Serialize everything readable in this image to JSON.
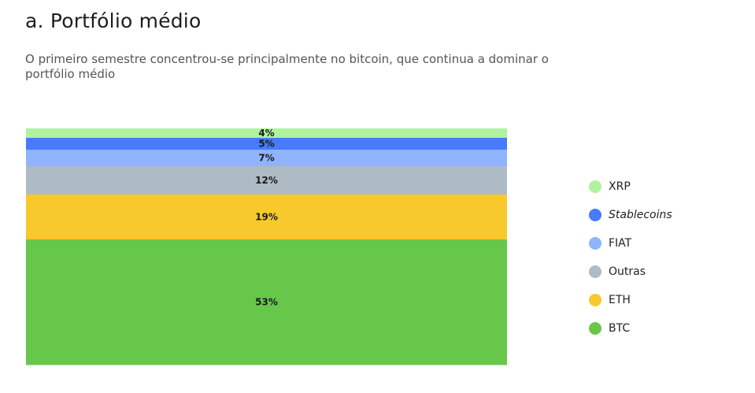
{
  "title": "a. Portfólio médio",
  "subtitle": "O primeiro semestre concentrou-se principalmente no bitcoin, que continua a dominar o portfólio médio",
  "chart_data": {
    "type": "bar",
    "stacked": true,
    "orientation": "vertical",
    "value_unit": "%",
    "ylim": [
      0,
      100
    ],
    "grid": false,
    "legend_position": "right",
    "series": [
      {
        "name": "XRP",
        "value": 4,
        "label": "4%",
        "color": "#b0f2a0",
        "italic": false
      },
      {
        "name": "Stablecoins",
        "value": 5,
        "label": "5%",
        "color": "#457bfc",
        "italic": true
      },
      {
        "name": "FIAT",
        "value": 7,
        "label": "7%",
        "color": "#90b3fd",
        "italic": false
      },
      {
        "name": "Outras",
        "value": 12,
        "label": "12%",
        "color": "#aebac4",
        "italic": false
      },
      {
        "name": "ETH",
        "value": 19,
        "label": "19%",
        "color": "#f7c92d",
        "italic": false
      },
      {
        "name": "BTC",
        "value": 53,
        "label": "53%",
        "color": "#67c74b",
        "italic": false
      }
    ]
  }
}
